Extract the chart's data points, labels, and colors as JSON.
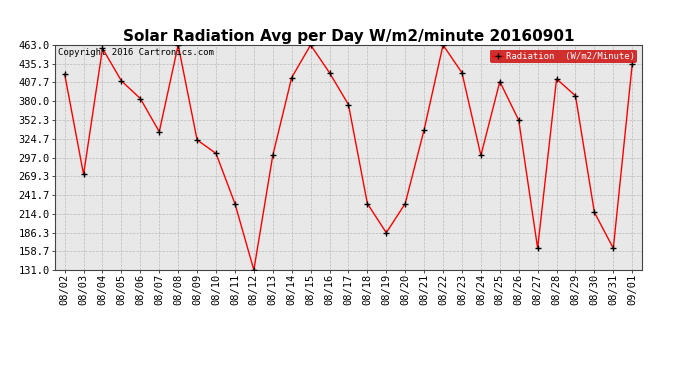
{
  "title": "Solar Radiation Avg per Day W/m2/minute 20160901",
  "copyright_text": "Copyright 2016 Cartronics.com",
  "legend_label": "Radiation  (W/m2/Minute)",
  "dates": [
    "08/02",
    "08/03",
    "08/04",
    "08/05",
    "08/06",
    "08/07",
    "08/08",
    "08/09",
    "08/10",
    "08/11",
    "08/12",
    "08/13",
    "08/14",
    "08/15",
    "08/16",
    "08/17",
    "08/18",
    "08/19",
    "08/20",
    "08/21",
    "08/22",
    "08/23",
    "08/24",
    "08/25",
    "08/26",
    "08/27",
    "08/28",
    "08/29",
    "08/30",
    "08/31",
    "09/01"
  ],
  "values": [
    420.0,
    272.0,
    458.0,
    410.0,
    384.0,
    335.0,
    463.0,
    323.0,
    303.0,
    229.0,
    131.0,
    300.0,
    415.0,
    463.0,
    422.0,
    375.0,
    229.0,
    186.0,
    229.0,
    338.0,
    463.0,
    422.0,
    300.0,
    409.0,
    352.0,
    163.0,
    413.0,
    388.0,
    216.0,
    163.0,
    435.0
  ],
  "ylim_min": 131.0,
  "ylim_max": 463.0,
  "ytick_labels": [
    "463.0",
    "435.3",
    "407.7",
    "380.0",
    "352.3",
    "324.7",
    "297.0",
    "269.3",
    "241.7",
    "214.0",
    "186.3",
    "158.7",
    "131.0"
  ],
  "ytick_values": [
    463.0,
    435.3,
    407.7,
    380.0,
    352.3,
    324.7,
    297.0,
    269.3,
    241.7,
    214.0,
    186.3,
    158.7,
    131.0
  ],
  "line_color": "#ff0000",
  "marker_color": "#000000",
  "bg_color": "#ffffff",
  "plot_bg_color": "#e8e8e8",
  "grid_color": "#bbbbbb",
  "title_fontsize": 11,
  "tick_fontsize": 7.5,
  "legend_bg": "#cc0000",
  "legend_text_color": "#ffffff",
  "copyright_fontsize": 6.5
}
